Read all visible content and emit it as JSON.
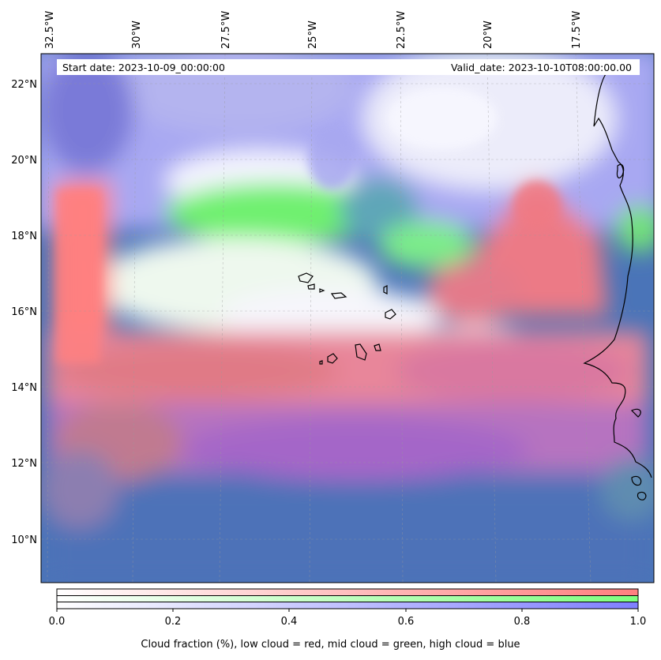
{
  "header": {
    "start_date_label": "Start date: 2023-10-09_00:00:00",
    "valid_date_label": "Valid_date: 2023-10-10T08:00:00.00"
  },
  "axes": {
    "lon_labels": [
      "32.5°W",
      "30°W",
      "27.5°W",
      "25°W",
      "22.5°W",
      "20°W",
      "17.5°W"
    ],
    "lat_labels": [
      "22°N",
      "20°N",
      "18°N",
      "16°N",
      "14°N",
      "12°N",
      "10°N"
    ]
  },
  "colorbar": {
    "ticks": [
      "0.0",
      "0.2",
      "0.4",
      "0.6",
      "0.8",
      "1.0"
    ],
    "caption": "Cloud fraction (%), low cloud = red, mid cloud = green, high cloud = blue",
    "colors": {
      "low": "#ff7f7f",
      "mid": "#7fff7f",
      "high": "#7f7fff"
    }
  },
  "chart_data": {
    "type": "heatmap",
    "lon_range": [
      -33,
      -15.5
    ],
    "lat_range": [
      8.9,
      22.8
    ],
    "lon_ticks": [
      -32.5,
      -30,
      -27.5,
      -25,
      -22.5,
      -20,
      -17.5
    ],
    "lat_ticks": [
      22,
      20,
      18,
      16,
      14,
      12,
      10
    ],
    "grid": true,
    "colorbar_range": [
      0,
      1
    ]
  }
}
